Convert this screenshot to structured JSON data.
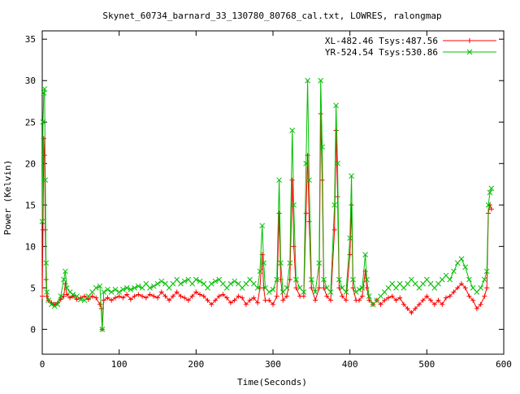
{
  "chart_data": {
    "type": "line",
    "title": "Skynet_60734_barnard_33_130780_80768_cal.txt, LOWRES, ralongmap",
    "xlabel": "Time(Seconds)",
    "ylabel": "Power (Kelvin)",
    "xlim": [
      0,
      600
    ],
    "ylim": [
      -3,
      36
    ],
    "xticks": [
      0,
      100,
      200,
      300,
      400,
      500,
      600
    ],
    "yticks": [
      0,
      5,
      10,
      15,
      20,
      25,
      30,
      35
    ],
    "grid": false,
    "legend_position": "top-right",
    "series": [
      {
        "name": "XL-482.46 Tsys:487.56",
        "color": "#ff0000",
        "marker": "plus",
        "points": [
          [
            0,
            4.0
          ],
          [
            1,
            12.0
          ],
          [
            2,
            23.0
          ],
          [
            3,
            21.0
          ],
          [
            4,
            12.0
          ],
          [
            5,
            6.0
          ],
          [
            6,
            4.0
          ],
          [
            8,
            3.5
          ],
          [
            12,
            3.2
          ],
          [
            16,
            3.0
          ],
          [
            20,
            3.2
          ],
          [
            24,
            3.6
          ],
          [
            28,
            4.0
          ],
          [
            30,
            5.5
          ],
          [
            32,
            4.2
          ],
          [
            36,
            3.8
          ],
          [
            40,
            4.0
          ],
          [
            45,
            3.6
          ],
          [
            50,
            3.8
          ],
          [
            55,
            4.0
          ],
          [
            60,
            3.6
          ],
          [
            65,
            4.0
          ],
          [
            70,
            3.8
          ],
          [
            75,
            3.0
          ],
          [
            77,
            2.5
          ],
          [
            78,
            0.0
          ],
          [
            80,
            3.5
          ],
          [
            85,
            3.8
          ],
          [
            90,
            3.5
          ],
          [
            95,
            3.8
          ],
          [
            100,
            4.0
          ],
          [
            105,
            3.8
          ],
          [
            110,
            4.2
          ],
          [
            115,
            3.6
          ],
          [
            120,
            4.0
          ],
          [
            125,
            4.2
          ],
          [
            130,
            4.0
          ],
          [
            135,
            3.8
          ],
          [
            140,
            4.2
          ],
          [
            145,
            4.0
          ],
          [
            150,
            3.8
          ],
          [
            155,
            4.5
          ],
          [
            160,
            4.0
          ],
          [
            165,
            3.5
          ],
          [
            170,
            4.0
          ],
          [
            175,
            4.5
          ],
          [
            180,
            4.0
          ],
          [
            185,
            3.8
          ],
          [
            190,
            3.5
          ],
          [
            195,
            4.0
          ],
          [
            200,
            4.5
          ],
          [
            205,
            4.2
          ],
          [
            210,
            4.0
          ],
          [
            215,
            3.5
          ],
          [
            220,
            3.0
          ],
          [
            225,
            3.5
          ],
          [
            230,
            4.0
          ],
          [
            235,
            4.2
          ],
          [
            240,
            3.8
          ],
          [
            245,
            3.2
          ],
          [
            250,
            3.5
          ],
          [
            255,
            4.0
          ],
          [
            260,
            3.8
          ],
          [
            265,
            3.0
          ],
          [
            270,
            3.5
          ],
          [
            275,
            3.8
          ],
          [
            280,
            3.2
          ],
          [
            283,
            5.0
          ],
          [
            286,
            9.0
          ],
          [
            288,
            5.0
          ],
          [
            290,
            3.5
          ],
          [
            295,
            3.5
          ],
          [
            300,
            3.0
          ],
          [
            305,
            4.0
          ],
          [
            308,
            14.0
          ],
          [
            310,
            6.0
          ],
          [
            313,
            3.5
          ],
          [
            318,
            4.0
          ],
          [
            322,
            6.0
          ],
          [
            325,
            18.0
          ],
          [
            327,
            10.0
          ],
          [
            330,
            5.0
          ],
          [
            335,
            4.0
          ],
          [
            340,
            4.0
          ],
          [
            343,
            14.0
          ],
          [
            345,
            21.0
          ],
          [
            347,
            13.0
          ],
          [
            350,
            5.0
          ],
          [
            355,
            3.5
          ],
          [
            360,
            5.0
          ],
          [
            362,
            26.0
          ],
          [
            364,
            18.0
          ],
          [
            366,
            5.0
          ],
          [
            370,
            4.0
          ],
          [
            375,
            3.5
          ],
          [
            380,
            12.0
          ],
          [
            382,
            24.0
          ],
          [
            384,
            16.0
          ],
          [
            386,
            5.0
          ],
          [
            390,
            4.0
          ],
          [
            395,
            3.5
          ],
          [
            400,
            9.0
          ],
          [
            402,
            15.0
          ],
          [
            404,
            5.0
          ],
          [
            408,
            3.5
          ],
          [
            412,
            3.5
          ],
          [
            416,
            4.0
          ],
          [
            420,
            7.0
          ],
          [
            422,
            5.0
          ],
          [
            425,
            3.5
          ],
          [
            430,
            3.0
          ],
          [
            435,
            3.5
          ],
          [
            440,
            3.0
          ],
          [
            445,
            3.5
          ],
          [
            450,
            3.8
          ],
          [
            455,
            4.0
          ],
          [
            460,
            3.5
          ],
          [
            465,
            3.8
          ],
          [
            470,
            3.0
          ],
          [
            475,
            2.5
          ],
          [
            480,
            2.0
          ],
          [
            485,
            2.5
          ],
          [
            490,
            3.0
          ],
          [
            495,
            3.5
          ],
          [
            500,
            4.0
          ],
          [
            505,
            3.5
          ],
          [
            510,
            3.0
          ],
          [
            515,
            3.5
          ],
          [
            520,
            3.0
          ],
          [
            525,
            3.8
          ],
          [
            530,
            4.0
          ],
          [
            535,
            4.5
          ],
          [
            540,
            5.0
          ],
          [
            545,
            5.5
          ],
          [
            550,
            5.0
          ],
          [
            555,
            4.0
          ],
          [
            560,
            3.5
          ],
          [
            565,
            2.5
          ],
          [
            570,
            3.0
          ],
          [
            575,
            4.0
          ],
          [
            578,
            5.0
          ],
          [
            580,
            14.0
          ],
          [
            582,
            15.0
          ],
          [
            584,
            14.5
          ]
        ]
      },
      {
        "name": "YR-524.54 Tsys:530.86",
        "color": "#00c000",
        "marker": "cross",
        "points": [
          [
            0,
            13.0
          ],
          [
            1,
            25.0
          ],
          [
            2,
            28.5
          ],
          [
            3,
            29.0
          ],
          [
            4,
            18.0
          ],
          [
            5,
            8.0
          ],
          [
            6,
            4.5
          ],
          [
            8,
            3.5
          ],
          [
            12,
            3.0
          ],
          [
            16,
            2.8
          ],
          [
            20,
            3.0
          ],
          [
            24,
            4.0
          ],
          [
            28,
            6.0
          ],
          [
            30,
            7.0
          ],
          [
            32,
            5.0
          ],
          [
            36,
            4.5
          ],
          [
            40,
            4.2
          ],
          [
            45,
            4.0
          ],
          [
            50,
            3.6
          ],
          [
            55,
            3.5
          ],
          [
            60,
            4.0
          ],
          [
            65,
            4.5
          ],
          [
            70,
            5.0
          ],
          [
            75,
            5.2
          ],
          [
            78,
            0.0
          ],
          [
            80,
            4.5
          ],
          [
            85,
            4.8
          ],
          [
            90,
            4.5
          ],
          [
            95,
            4.8
          ],
          [
            100,
            4.5
          ],
          [
            105,
            4.8
          ],
          [
            110,
            5.0
          ],
          [
            115,
            4.8
          ],
          [
            120,
            5.0
          ],
          [
            125,
            5.2
          ],
          [
            130,
            5.0
          ],
          [
            135,
            5.5
          ],
          [
            140,
            5.0
          ],
          [
            145,
            5.2
          ],
          [
            150,
            5.5
          ],
          [
            155,
            5.8
          ],
          [
            160,
            5.5
          ],
          [
            165,
            5.0
          ],
          [
            170,
            5.5
          ],
          [
            175,
            6.0
          ],
          [
            180,
            5.5
          ],
          [
            185,
            5.8
          ],
          [
            190,
            6.0
          ],
          [
            195,
            5.5
          ],
          [
            200,
            6.0
          ],
          [
            205,
            5.8
          ],
          [
            210,
            5.5
          ],
          [
            215,
            5.0
          ],
          [
            220,
            5.5
          ],
          [
            225,
            5.8
          ],
          [
            230,
            6.0
          ],
          [
            235,
            5.5
          ],
          [
            240,
            5.0
          ],
          [
            245,
            5.5
          ],
          [
            250,
            5.8
          ],
          [
            255,
            5.5
          ],
          [
            260,
            5.0
          ],
          [
            265,
            5.5
          ],
          [
            270,
            6.0
          ],
          [
            275,
            5.5
          ],
          [
            280,
            5.0
          ],
          [
            283,
            7.0
          ],
          [
            286,
            12.5
          ],
          [
            288,
            8.0
          ],
          [
            290,
            5.0
          ],
          [
            295,
            4.5
          ],
          [
            300,
            4.8
          ],
          [
            305,
            6.0
          ],
          [
            308,
            18.0
          ],
          [
            310,
            8.0
          ],
          [
            313,
            4.5
          ],
          [
            318,
            5.0
          ],
          [
            322,
            8.0
          ],
          [
            325,
            24.0
          ],
          [
            327,
            15.0
          ],
          [
            330,
            6.0
          ],
          [
            335,
            5.0
          ],
          [
            340,
            4.5
          ],
          [
            343,
            20.0
          ],
          [
            345,
            30.0
          ],
          [
            347,
            18.0
          ],
          [
            350,
            6.0
          ],
          [
            355,
            4.5
          ],
          [
            360,
            8.0
          ],
          [
            362,
            30.0
          ],
          [
            364,
            22.0
          ],
          [
            366,
            6.0
          ],
          [
            370,
            5.0
          ],
          [
            375,
            4.5
          ],
          [
            380,
            15.0
          ],
          [
            382,
            27.0
          ],
          [
            384,
            20.0
          ],
          [
            386,
            6.0
          ],
          [
            390,
            5.0
          ],
          [
            395,
            4.5
          ],
          [
            400,
            11.0
          ],
          [
            402,
            18.5
          ],
          [
            404,
            6.0
          ],
          [
            408,
            4.5
          ],
          [
            412,
            4.8
          ],
          [
            416,
            5.0
          ],
          [
            420,
            9.0
          ],
          [
            422,
            6.0
          ],
          [
            425,
            4.0
          ],
          [
            430,
            3.0
          ],
          [
            435,
            3.5
          ],
          [
            440,
            4.0
          ],
          [
            445,
            4.5
          ],
          [
            450,
            5.0
          ],
          [
            455,
            5.5
          ],
          [
            460,
            5.0
          ],
          [
            465,
            5.5
          ],
          [
            470,
            5.0
          ],
          [
            475,
            5.5
          ],
          [
            480,
            6.0
          ],
          [
            485,
            5.5
          ],
          [
            490,
            5.0
          ],
          [
            495,
            5.5
          ],
          [
            500,
            6.0
          ],
          [
            505,
            5.5
          ],
          [
            510,
            5.0
          ],
          [
            515,
            5.5
          ],
          [
            520,
            6.0
          ],
          [
            525,
            6.5
          ],
          [
            530,
            6.0
          ],
          [
            535,
            7.0
          ],
          [
            540,
            8.0
          ],
          [
            545,
            8.5
          ],
          [
            550,
            7.5
          ],
          [
            555,
            6.0
          ],
          [
            560,
            5.0
          ],
          [
            565,
            4.5
          ],
          [
            570,
            5.0
          ],
          [
            575,
            6.0
          ],
          [
            578,
            7.0
          ],
          [
            580,
            15.0
          ],
          [
            582,
            16.5
          ],
          [
            584,
            17.0
          ]
        ]
      }
    ]
  }
}
